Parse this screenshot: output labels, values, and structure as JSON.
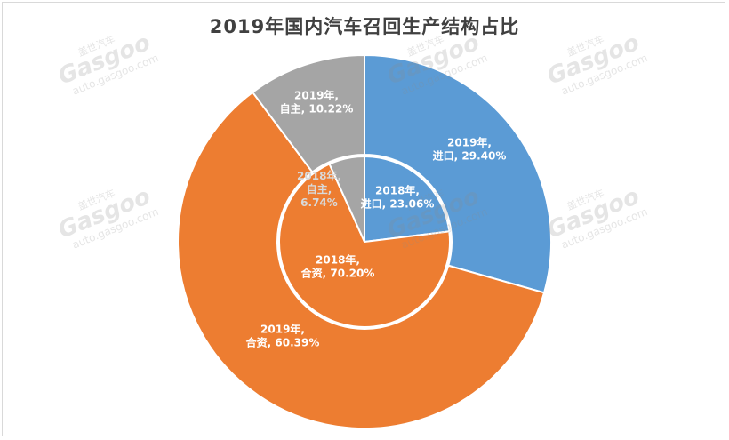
{
  "chart_data": {
    "type": "pie",
    "subtype": "nested-doughnut",
    "title": "2019年国内汽车召回生产结构占比",
    "categories": [
      "进口",
      "合资",
      "自主"
    ],
    "colors": {
      "进口": "#5b9bd5",
      "合资": "#ed7d31",
      "自主": "#a5a5a5"
    },
    "series": [
      {
        "name": "2019年",
        "values": [
          29.4,
          60.39,
          10.22
        ],
        "labels": [
          "2019年,\n进口, 29.40%",
          "2019年,\n合资, 60.39%",
          "2019年,\n自主, 10.22%"
        ]
      },
      {
        "name": "2018年",
        "values": [
          23.06,
          70.2,
          6.74
        ],
        "labels": [
          "2018年,\n进口, 23.06%",
          "2018年,\n合资, 70.20%",
          "2018年,\n自主,\n6.74%"
        ]
      }
    ]
  },
  "watermark": {
    "brand": "盖世汽车",
    "logo": "Gasgoo",
    "url": "auto.gasgoo.com"
  }
}
